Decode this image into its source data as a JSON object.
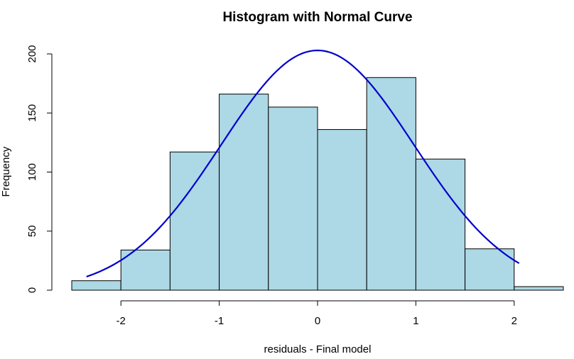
{
  "chart_data": {
    "type": "bar",
    "title": "Histogram with Normal Curve",
    "xlabel": "residuals - Final model",
    "ylabel": "Frequency",
    "bins": [
      {
        "x0": -2.5,
        "x1": -2.0,
        "count": 8
      },
      {
        "x0": -2.0,
        "x1": -1.5,
        "count": 34
      },
      {
        "x0": -1.5,
        "x1": -1.0,
        "count": 117
      },
      {
        "x0": -1.0,
        "x1": -0.5,
        "count": 166
      },
      {
        "x0": -0.5,
        "x1": 0.0,
        "count": 155
      },
      {
        "x0": 0.0,
        "x1": 0.5,
        "count": 136
      },
      {
        "x0": 0.5,
        "x1": 1.0,
        "count": 180
      },
      {
        "x0": 1.0,
        "x1": 1.5,
        "count": 111
      },
      {
        "x0": 1.5,
        "x1": 2.0,
        "count": 35
      },
      {
        "x0": 2.0,
        "x1": 2.5,
        "count": 3
      }
    ],
    "curve": {
      "x_range": [
        -2.35,
        2.05
      ],
      "mean": 0.0,
      "sd": 0.98,
      "peak": 203
    },
    "xticks": [
      -2,
      -1,
      0,
      1,
      2
    ],
    "xtick_labels": [
      "-2",
      "-1",
      "0",
      "1",
      "2"
    ],
    "yticks": [
      0,
      50,
      100,
      150,
      200
    ],
    "ytick_labels": [
      "0",
      "50",
      "100",
      "150",
      "200"
    ],
    "xlim": [
      -2.5,
      2.5
    ],
    "ylim": [
      0,
      210
    ],
    "grid": false,
    "colors": {
      "bar_fill": "#add8e6",
      "bar_stroke": "#000000",
      "curve": "#0000cd",
      "axis": "#000000"
    }
  }
}
